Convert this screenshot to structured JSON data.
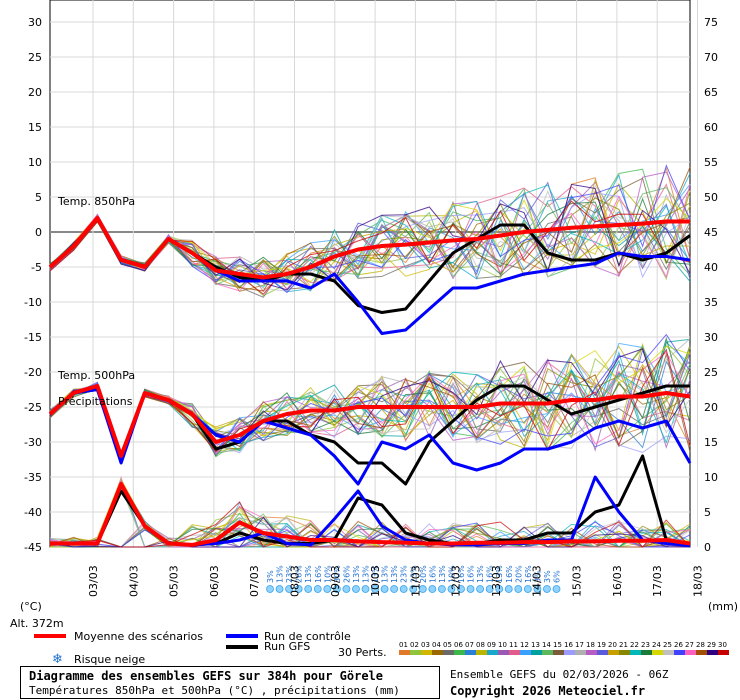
{
  "chart_data": {
    "type": "line",
    "title": "Diagramme des ensembles GEFS sur 384h pour Görele",
    "subtitle": "Températures 850hPa et 500hPa (°C) , précipitations (mm)",
    "left_axis": {
      "unit": "(°C)",
      "ticks": [
        30,
        25,
        20,
        15,
        10,
        5,
        0,
        -5,
        -10,
        -15,
        -20,
        -25,
        -30,
        -35,
        -40,
        -45
      ],
      "range": [
        -45,
        30
      ]
    },
    "right_axis": {
      "unit": "(mm)",
      "ticks": [
        75,
        70,
        65,
        60,
        55,
        50,
        45,
        40,
        35,
        30,
        25,
        20,
        15,
        10,
        5,
        0
      ],
      "range": [
        0,
        75
      ]
    },
    "x_labels": [
      "03/03",
      "04/03",
      "05/03",
      "06/03",
      "07/03",
      "08/03",
      "09/03",
      "10/03",
      "11/03",
      "12/03",
      "13/03",
      "14/03",
      "15/03",
      "16/03",
      "17/03",
      "18/03"
    ],
    "annotations": [
      "Temp. 850hPa",
      "Temp. 500hPa",
      "Précipitations"
    ],
    "altitude_label": "Alt. 372m",
    "snow_risk_labels": [
      "3%",
      "13%",
      "23%",
      "26%",
      "13%",
      "16%",
      "10%",
      "30%",
      "26%",
      "13%",
      "13%",
      "13%",
      "13%",
      "13%",
      "23%",
      "23%",
      "20%",
      "16%",
      "13%",
      "10%",
      "16%",
      "16%",
      "13%",
      "16%",
      "13%",
      "16%",
      "20%",
      "16%",
      "3%",
      "3%",
      "6%"
    ],
    "series": [
      {
        "name": "Moyenne des scénarios",
        "color": "#ff0000",
        "t850": [
          -5,
          -2,
          2,
          -4,
          -5,
          -1,
          -3,
          -5.5,
          -6,
          -6.5,
          -6,
          -5,
          -3.5,
          -2.5,
          -2,
          -1.8,
          -1.5,
          -1.2,
          -1,
          -0.5,
          0,
          0.3,
          0.6,
          0.8,
          1,
          1.2,
          1.5,
          1.5
        ],
        "t500": [
          -26,
          -23,
          -22,
          -32,
          -23,
          -24,
          -26,
          -30,
          -29,
          -27,
          -26,
          -25.5,
          -25.5,
          -25,
          -25,
          -25,
          -25,
          -25,
          -25,
          -24.5,
          -24.5,
          -24.5,
          -24,
          -24,
          -23.5,
          -23.5,
          -23,
          -23.5
        ],
        "precip": [
          0.5,
          0.5,
          0.5,
          9,
          3,
          0.5,
          0.3,
          1,
          3.5,
          2,
          1.5,
          1,
          1,
          0.8,
          0.7,
          0.6,
          0.5,
          0.5,
          0.6,
          0.6,
          0.7,
          0.7,
          0.8,
          0.8,
          0.9,
          0.9,
          1,
          0.5
        ]
      },
      {
        "name": "Run de contrôle",
        "color": "#0000ff",
        "t850": [
          -5,
          -2,
          2,
          -4,
          -5,
          -1,
          -3,
          -5.5,
          -7,
          -7,
          -7,
          -8,
          -6,
          -10,
          -14.5,
          -14,
          -11,
          -8,
          -8,
          -7,
          -6,
          -5.5,
          -5,
          -4.5,
          -3,
          -3.5,
          -3.5,
          -4
        ],
        "t500": [
          -26,
          -23,
          -22.5,
          -33,
          -23,
          -24,
          -26,
          -29,
          -30,
          -27,
          -28,
          -29,
          -32,
          -36,
          -30,
          -31,
          -29,
          -33,
          -34,
          -33,
          -31,
          -31,
          -30,
          -28,
          -27,
          -28,
          -27,
          -33
        ],
        "precip": [
          0.5,
          0.5,
          0.5,
          9,
          3,
          0.5,
          0.3,
          0.5,
          1,
          2,
          0.5,
          0.3,
          4,
          8,
          3,
          1,
          0.5,
          0.3,
          0.3,
          0.5,
          0.5,
          1,
          1,
          10,
          5,
          1,
          0.5,
          0.2
        ]
      },
      {
        "name": "Run GFS",
        "color": "#000000",
        "t850": [
          -5,
          -2,
          2,
          -4,
          -5,
          -1,
          -3,
          -5,
          -6.5,
          -7,
          -6,
          -6,
          -7,
          -10.5,
          -11.5,
          -11,
          -7,
          -3,
          -1,
          1,
          1,
          -3,
          -4,
          -4,
          -3,
          -4,
          -3,
          -0.5
        ],
        "t500": [
          -26,
          -23,
          -22.5,
          -32,
          -23,
          -24,
          -26,
          -31,
          -30,
          -27,
          -27,
          -29,
          -30,
          -33,
          -33,
          -36,
          -30,
          -27,
          -24,
          -22,
          -22,
          -24,
          -26,
          -25,
          -24,
          -23,
          -22,
          -22
        ],
        "precip": [
          0.5,
          0.5,
          0.5,
          8,
          3,
          0.5,
          0.3,
          0.5,
          2,
          1,
          0.5,
          0.5,
          1,
          7,
          6,
          2,
          1,
          0.5,
          0.5,
          1,
          1,
          2,
          2,
          5,
          6,
          13,
          1,
          0.2
        ]
      }
    ]
  },
  "legend": {
    "mean": "Moyenne des scénarios",
    "control": "Run de contrôle",
    "gfs": "Run GFS",
    "snow": "Risque neige",
    "perts_label": "30 Perts."
  },
  "perturbations": {
    "numbers": [
      "01",
      "02",
      "03",
      "04",
      "05",
      "06",
      "07",
      "08",
      "09",
      "10",
      "11",
      "12",
      "13",
      "14",
      "15",
      "16",
      "17",
      "18",
      "19",
      "20",
      "21",
      "22",
      "23",
      "24",
      "25",
      "26",
      "27",
      "28",
      "29",
      "30"
    ],
    "colors": [
      "#e07a2a",
      "#8fc43c",
      "#d1b800",
      "#9a6a00",
      "#6a6a6a",
      "#3cb84a",
      "#2a7fd6",
      "#bdb400",
      "#1aa7c9",
      "#9b59b6",
      "#e05c8a",
      "#3aa0ff",
      "#00a0a0",
      "#5db85d",
      "#7a5c3a",
      "#9c9cff",
      "#b0b0b0",
      "#b85cc4",
      "#5a5adb",
      "#c7a000",
      "#888800",
      "#00b8b8",
      "#1a7a3a",
      "#d6d600",
      "#c0c0c0",
      "#4040ff",
      "#ff60c0",
      "#a05000",
      "#300080",
      "#c80000"
    ]
  },
  "footer": {
    "title": "Diagramme des ensembles GEFS sur 384h pour Görele",
    "subtitle": "Températures 850hPa et 500hPa (°C) , précipitations (mm)",
    "run_info": "Ensemble GEFS du 02/03/2026 - 06Z",
    "copyright": "Copyright 2026 Meteociel.fr"
  }
}
